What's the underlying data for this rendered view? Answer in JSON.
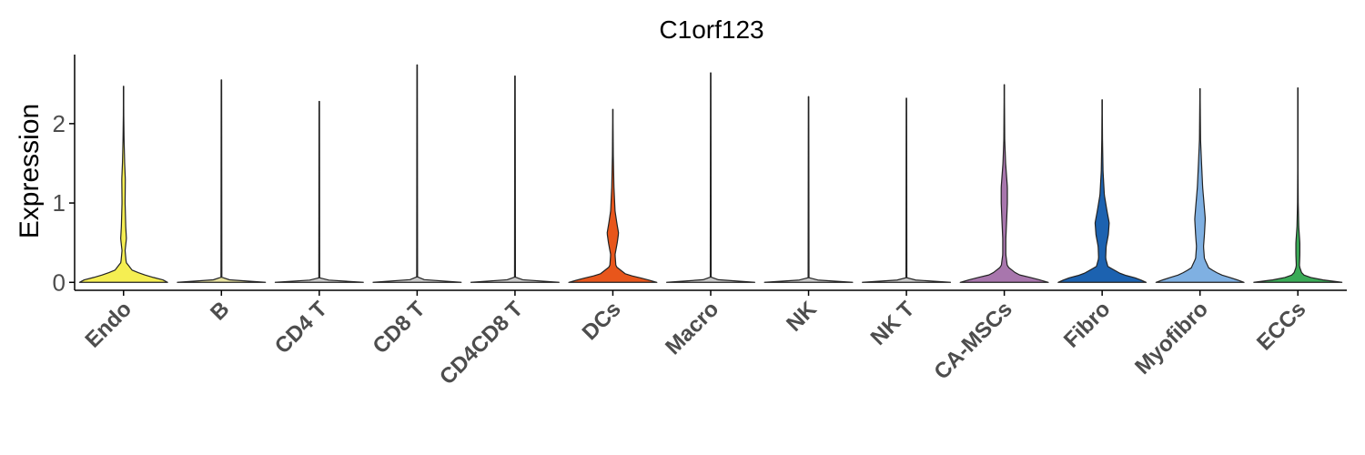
{
  "chart_data": {
    "type": "violin",
    "title": "C1orf123",
    "ylabel": "Expression",
    "xlabel": "",
    "ylim": [
      -0.1,
      2.87
    ],
    "yticks": [
      0,
      1,
      2
    ],
    "grid": false,
    "legend": "none",
    "categories": [
      "Endo",
      "B",
      "CD4 T",
      "CD8 T",
      "CD4CD8 T",
      "DCs",
      "Macro",
      "NK",
      "NK T",
      "CA-MSCs",
      "Fibro",
      "Myofibro",
      "ECCs"
    ],
    "colors": [
      "#f5ee52",
      "#e8e3a0",
      "#c9c9c9",
      "#c9c9c9",
      "#c9c9c9",
      "#e8561b",
      "#c9c9c9",
      "#c9c9c9",
      "#c9c9c9",
      "#a876ad",
      "#1c62b0",
      "#7fb0e2",
      "#3aab57"
    ],
    "max_values": [
      2.47,
      2.55,
      2.28,
      2.74,
      2.6,
      2.18,
      2.64,
      2.34,
      2.32,
      2.49,
      2.3,
      2.44,
      2.45
    ],
    "density_profiles": [
      [
        [
          0,
          1
        ],
        [
          0.03,
          0.9
        ],
        [
          0.08,
          0.55
        ],
        [
          0.15,
          0.2
        ],
        [
          0.25,
          0.06
        ],
        [
          0.4,
          0.035
        ],
        [
          0.55,
          0.065
        ],
        [
          0.7,
          0.05
        ],
        [
          1.0,
          0.035
        ],
        [
          1.3,
          0.04
        ],
        [
          1.5,
          0.025
        ],
        [
          1.8,
          0.012
        ],
        [
          2.1,
          0.005
        ],
        [
          2.47,
          0.002
        ]
      ],
      [
        [
          0,
          1
        ],
        [
          0.02,
          0.3
        ],
        [
          0.05,
          0.01
        ],
        [
          2.55,
          0.005
        ]
      ],
      [
        [
          0,
          1
        ],
        [
          0.02,
          0.3
        ],
        [
          0.05,
          0.01
        ],
        [
          2.28,
          0.005
        ]
      ],
      [
        [
          0,
          1
        ],
        [
          0.02,
          0.3
        ],
        [
          0.05,
          0.01
        ],
        [
          2.74,
          0.005
        ]
      ],
      [
        [
          0,
          1
        ],
        [
          0.02,
          0.3
        ],
        [
          0.05,
          0.01
        ],
        [
          2.6,
          0.005
        ]
      ],
      [
        [
          0,
          1
        ],
        [
          0.04,
          0.75
        ],
        [
          0.1,
          0.3
        ],
        [
          0.2,
          0.07
        ],
        [
          0.35,
          0.05
        ],
        [
          0.5,
          0.1
        ],
        [
          0.62,
          0.13
        ],
        [
          0.75,
          0.09
        ],
        [
          0.9,
          0.05
        ],
        [
          1.2,
          0.025
        ],
        [
          1.6,
          0.01
        ],
        [
          2.18,
          0.002
        ]
      ],
      [
        [
          0,
          1
        ],
        [
          0.02,
          0.3
        ],
        [
          0.05,
          0.01
        ],
        [
          2.64,
          0.005
        ]
      ],
      [
        [
          0,
          1
        ],
        [
          0.02,
          0.3
        ],
        [
          0.05,
          0.01
        ],
        [
          2.34,
          0.005
        ]
      ],
      [
        [
          0,
          1
        ],
        [
          0.02,
          0.3
        ],
        [
          0.05,
          0.01
        ],
        [
          2.32,
          0.005
        ]
      ],
      [
        [
          0,
          1
        ],
        [
          0.04,
          0.75
        ],
        [
          0.1,
          0.3
        ],
        [
          0.2,
          0.07
        ],
        [
          0.35,
          0.035
        ],
        [
          0.55,
          0.035
        ],
        [
          0.8,
          0.055
        ],
        [
          1.0,
          0.07
        ],
        [
          1.2,
          0.07
        ],
        [
          1.5,
          0.03
        ],
        [
          1.8,
          0.01
        ],
        [
          2.49,
          0.002
        ]
      ],
      [
        [
          0,
          1
        ],
        [
          0.05,
          0.8
        ],
        [
          0.1,
          0.45
        ],
        [
          0.2,
          0.13
        ],
        [
          0.3,
          0.08
        ],
        [
          0.45,
          0.09
        ],
        [
          0.6,
          0.14
        ],
        [
          0.75,
          0.16
        ],
        [
          0.9,
          0.11
        ],
        [
          1.1,
          0.05
        ],
        [
          1.4,
          0.02
        ],
        [
          1.8,
          0.008
        ],
        [
          2.3,
          0.002
        ]
      ],
      [
        [
          0,
          1
        ],
        [
          0.04,
          0.8
        ],
        [
          0.1,
          0.45
        ],
        [
          0.18,
          0.2
        ],
        [
          0.3,
          0.1
        ],
        [
          0.45,
          0.08
        ],
        [
          0.6,
          0.1
        ],
        [
          0.8,
          0.12
        ],
        [
          1.0,
          0.09
        ],
        [
          1.2,
          0.06
        ],
        [
          1.5,
          0.035
        ],
        [
          1.8,
          0.012
        ],
        [
          2.44,
          0.002
        ]
      ],
      [
        [
          0,
          1
        ],
        [
          0.02,
          0.7
        ],
        [
          0.05,
          0.35
        ],
        [
          0.1,
          0.1
        ],
        [
          0.2,
          0.035
        ],
        [
          0.35,
          0.045
        ],
        [
          0.5,
          0.045
        ],
        [
          0.7,
          0.02
        ],
        [
          1.0,
          0.008
        ],
        [
          1.5,
          0.003
        ],
        [
          2.45,
          0.001
        ]
      ]
    ]
  }
}
